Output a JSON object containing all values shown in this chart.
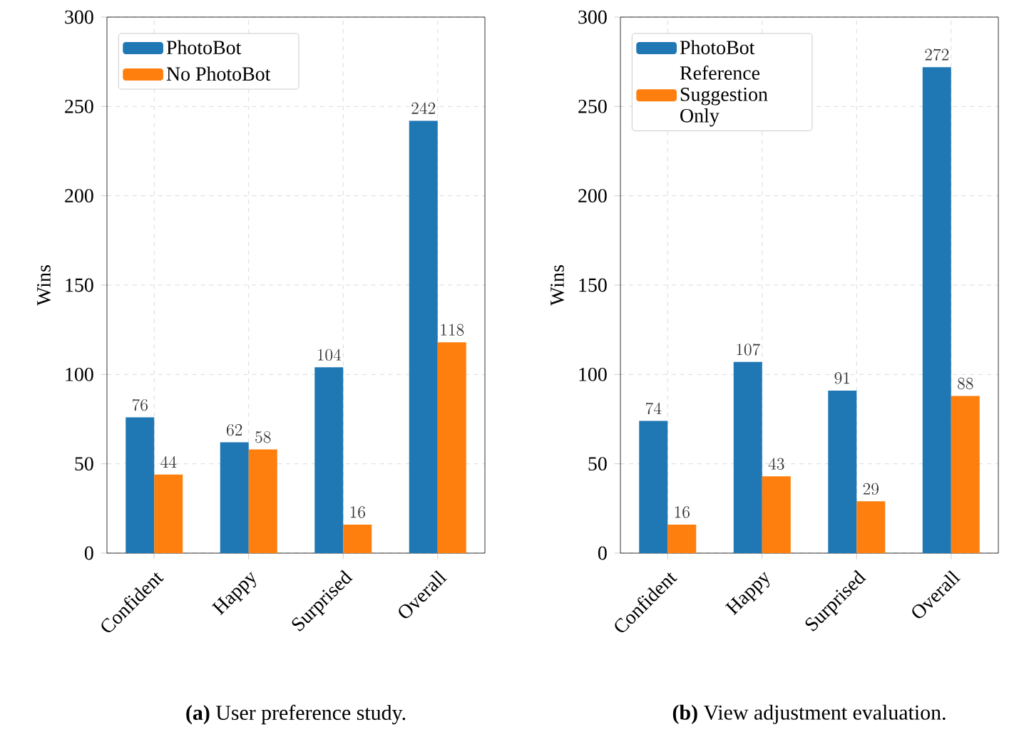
{
  "chart_data": [
    {
      "type": "bar",
      "categories": [
        "Confident",
        "Happy",
        "Surprised",
        "Overall"
      ],
      "ylabel": "Wins",
      "ylim": [
        0,
        300
      ],
      "yticks": [
        0,
        50,
        100,
        150,
        200,
        250,
        300
      ],
      "grid": true,
      "legend": "top left",
      "data_labels": true,
      "series": [
        {
          "name": "PhotoBot",
          "color": "#1f77b4",
          "values": [
            76,
            62,
            104,
            242
          ]
        },
        {
          "name": "No PhotoBot",
          "color": "#ff7f0e",
          "values": [
            44,
            58,
            16,
            118
          ]
        }
      ],
      "annotations": [
        "**(a)** User preference study."
      ]
    },
    {
      "type": "bar",
      "categories": [
        "Confident",
        "Happy",
        "Surprised",
        "Overall"
      ],
      "ylabel": "Wins",
      "ylim": [
        0,
        300
      ],
      "yticks": [
        0,
        50,
        100,
        150,
        200,
        250,
        300
      ],
      "grid": true,
      "legend": "top left",
      "data_labels": true,
      "series": [
        {
          "name": "PhotoBot",
          "color": "#1f77b4",
          "values": [
            74,
            107,
            91,
            272
          ]
        },
        {
          "name": "Reference Suggestion Only",
          "color": "#ff7f0e",
          "values": [
            16,
            43,
            29,
            88
          ]
        }
      ],
      "annotations": [
        "**(b)** View adjustment evaluation."
      ]
    }
  ]
}
